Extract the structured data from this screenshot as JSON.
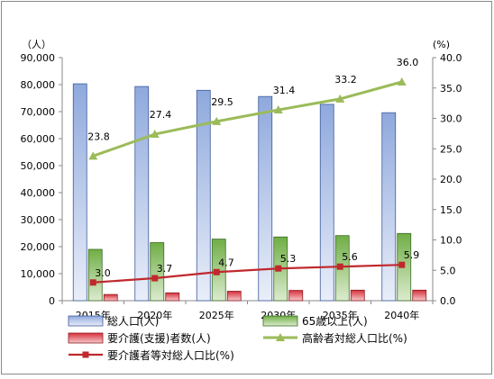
{
  "chart_data": {
    "type": "bar",
    "categories": [
      "2015年",
      "2020年",
      "2025年",
      "2030年",
      "2035年",
      "2040年"
    ],
    "series": [
      {
        "name": "総人口(人)",
        "type": "bar",
        "axis": "left",
        "color": "#4a6fb5",
        "values": [
          80300,
          79300,
          77900,
          75600,
          72700,
          69600
        ]
      },
      {
        "name": "65歳以上(人)",
        "type": "bar",
        "axis": "left",
        "color": "#5e9a3c",
        "values": [
          19000,
          21500,
          22800,
          23600,
          24100,
          24900
        ]
      },
      {
        "name": "要介護(支援)者数(人)",
        "type": "bar",
        "axis": "left",
        "color": "#c0282d",
        "values": [
          2300,
          2900,
          3500,
          3800,
          3900,
          3900
        ]
      },
      {
        "name": "高齢者対総人口比(%)",
        "type": "line",
        "axis": "right",
        "color": "#9bbb59",
        "values": [
          23.8,
          27.4,
          29.5,
          31.4,
          33.2,
          36.0
        ]
      },
      {
        "name": "要介護者等対総人口比(%)",
        "type": "line",
        "axis": "right",
        "color": "#c0282d",
        "values": [
          3.0,
          3.7,
          4.7,
          5.3,
          5.6,
          5.9
        ]
      }
    ],
    "y_left": {
      "unit_label": "（人）",
      "ylim": [
        0,
        90000
      ],
      "ticks": [
        "0",
        "10,000",
        "20,000",
        "30,000",
        "40,000",
        "50,000",
        "60,000",
        "70,000",
        "80,000",
        "90,000"
      ]
    },
    "y_right": {
      "unit_label": "(%)",
      "ylim": [
        0,
        40
      ],
      "ticks": [
        "0.0",
        "5.0",
        "10.0",
        "15.0",
        "20.0",
        "25.0",
        "30.0",
        "35.0",
        "40.0"
      ]
    },
    "data_labels": {
      "elderly_ratio": [
        "23.8",
        "27.4",
        "29.5",
        "31.4",
        "33.2",
        "36.0"
      ],
      "care_ratio": [
        "3.0",
        "3.7",
        "4.7",
        "5.3",
        "5.6",
        "5.9"
      ]
    },
    "legend_position": "bottom",
    "grid": false
  }
}
